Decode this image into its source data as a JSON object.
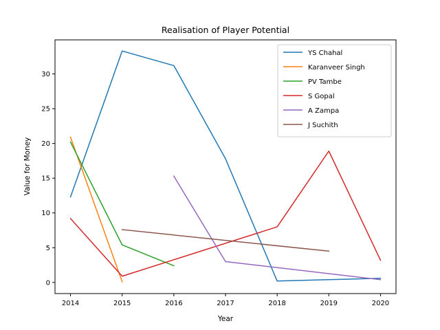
{
  "chart_data": {
    "type": "line",
    "title": "Realisation of Player Potential",
    "xlabel": "Year",
    "ylabel": "Value for Money",
    "xlim": [
      2013.7,
      2020.3
    ],
    "ylim": [
      -1.6,
      34.9
    ],
    "x_ticks": [
      2014,
      2015,
      2016,
      2017,
      2018,
      2019,
      2020
    ],
    "y_ticks": [
      0,
      5,
      10,
      15,
      20,
      25,
      30
    ],
    "grid": false,
    "legend_position": "top-right",
    "series": [
      {
        "name": "YS Chahal",
        "color": "#1f77b4",
        "x": [
          2014,
          2015,
          2016,
          2017,
          2018,
          2019,
          2020
        ],
        "y": [
          12.3,
          33.3,
          31.2,
          17.8,
          0.2,
          0.4,
          0.6
        ]
      },
      {
        "name": "Karanveer Singh",
        "color": "#ff7f0e",
        "x": [
          2014,
          2015
        ],
        "y": [
          20.9,
          0.1
        ]
      },
      {
        "name": "PV Tambe",
        "color": "#2ca02c",
        "x": [
          2014,
          2015,
          2016
        ],
        "y": [
          20.2,
          5.4,
          2.4
        ]
      },
      {
        "name": "S Gopal",
        "color": "#d62728",
        "x": [
          2014,
          2015,
          2018,
          2019,
          2020
        ],
        "y": [
          9.2,
          0.9,
          8.0,
          18.9,
          3.2
        ]
      },
      {
        "name": "A Zampa",
        "color": "#9467bd",
        "x": [
          2016,
          2017,
          2020
        ],
        "y": [
          15.3,
          3.0,
          0.4
        ]
      },
      {
        "name": "J Suchith",
        "color": "#8c564b",
        "x": [
          2015,
          2019
        ],
        "y": [
          7.6,
          4.5
        ]
      }
    ]
  }
}
